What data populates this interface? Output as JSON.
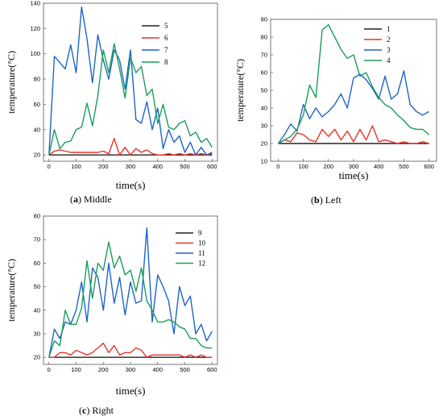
{
  "chart_data": [
    {
      "type": "line",
      "panel": "a",
      "caption_tag": "a",
      "caption_text": " Middle",
      "xlabel": "time(s)",
      "ylabel": "temperature(°C)",
      "xlim": [
        -20,
        620
      ],
      "ylim": [
        15,
        140
      ],
      "xticks": [
        0,
        100,
        200,
        300,
        400,
        500,
        600
      ],
      "yticks": [
        20,
        40,
        60,
        80,
        100,
        120,
        140
      ],
      "legend_position": "top-right",
      "colors": [
        "#222222",
        "#e8332a",
        "#1e64c8",
        "#1a9e5a"
      ],
      "series": [
        {
          "name": "5",
          "x": [
            0,
            600
          ],
          "values": [
            20,
            20
          ]
        },
        {
          "name": "6",
          "x": [
            0,
            20,
            40,
            60,
            80,
            100,
            120,
            140,
            160,
            180,
            200,
            220,
            240,
            260,
            280,
            300,
            320,
            340,
            360,
            380,
            400,
            420,
            440,
            460,
            480,
            500,
            520,
            540,
            560,
            580,
            600
          ],
          "values": [
            20,
            23,
            24,
            23,
            22,
            22,
            22,
            22,
            22,
            22,
            23,
            21,
            33,
            20,
            26,
            20,
            25,
            22,
            24,
            21,
            20,
            20,
            21,
            20,
            21,
            20,
            21,
            20,
            21,
            20,
            21
          ]
        },
        {
          "name": "7",
          "x": [
            0,
            20,
            40,
            60,
            80,
            100,
            120,
            140,
            160,
            180,
            200,
            220,
            240,
            260,
            280,
            300,
            320,
            340,
            360,
            380,
            400,
            420,
            440,
            460,
            480,
            500,
            520,
            540,
            560,
            580,
            600
          ],
          "values": [
            20,
            98,
            93,
            88,
            107,
            85,
            137,
            112,
            77,
            115,
            95,
            80,
            103,
            95,
            72,
            103,
            48,
            45,
            62,
            40,
            57,
            25,
            40,
            30,
            35,
            22,
            30,
            20,
            26,
            20,
            22
          ]
        },
        {
          "name": "8",
          "x": [
            0,
            20,
            40,
            60,
            80,
            100,
            120,
            140,
            160,
            180,
            200,
            220,
            240,
            260,
            280,
            300,
            320,
            340,
            360,
            380,
            400,
            420,
            440,
            460,
            480,
            500,
            520,
            540,
            560,
            580,
            600
          ],
          "values": [
            20,
            40,
            25,
            30,
            31,
            40,
            42,
            61,
            43,
            67,
            103,
            85,
            108,
            88,
            65,
            97,
            85,
            90,
            67,
            72,
            45,
            60,
            42,
            40,
            45,
            47,
            35,
            38,
            30,
            33,
            26
          ]
        }
      ]
    },
    {
      "type": "line",
      "panel": "b",
      "caption_tag": "b",
      "caption_text": " Left",
      "xlabel": "time(s)",
      "ylabel": "temperature(°C)",
      "xlim": [
        -30,
        630
      ],
      "ylim": [
        10,
        90
      ],
      "xticks": [
        0,
        100,
        200,
        300,
        400,
        500,
        600
      ],
      "yticks": [
        10,
        20,
        30,
        40,
        50,
        60,
        70,
        80,
        90
      ],
      "legend_position": "top-right",
      "colors": [
        "#222222",
        "#e8332a",
        "#1e64c8",
        "#1a9e5a"
      ],
      "series": [
        {
          "name": "1",
          "x": [
            0,
            600
          ],
          "values": [
            20,
            20
          ]
        },
        {
          "name": "2",
          "x": [
            0,
            25,
            50,
            75,
            100,
            125,
            150,
            175,
            200,
            225,
            250,
            275,
            300,
            325,
            350,
            375,
            400,
            425,
            450,
            475,
            500,
            525,
            550,
            575,
            600
          ],
          "values": [
            20,
            22,
            21,
            26,
            25,
            22,
            21,
            28,
            24,
            28,
            22,
            27,
            21,
            28,
            22,
            30,
            21,
            22,
            21,
            20,
            21,
            20,
            20,
            21,
            20
          ]
        },
        {
          "name": "3",
          "x": [
            0,
            25,
            50,
            75,
            100,
            125,
            150,
            175,
            200,
            225,
            250,
            275,
            300,
            325,
            350,
            375,
            400,
            425,
            450,
            475,
            500,
            525,
            550,
            575,
            600
          ],
          "values": [
            20,
            25,
            31,
            27,
            42,
            34,
            40,
            35,
            38,
            42,
            48,
            40,
            57,
            59,
            56,
            51,
            45,
            58,
            45,
            48,
            61,
            42,
            38,
            36,
            38
          ]
        },
        {
          "name": "4",
          "x": [
            0,
            25,
            50,
            75,
            100,
            125,
            150,
            175,
            200,
            225,
            250,
            275,
            300,
            325,
            350,
            375,
            400,
            425,
            450,
            475,
            500,
            525,
            550,
            575,
            600
          ],
          "values": [
            20,
            22,
            24,
            28,
            36,
            53,
            46,
            84,
            87,
            80,
            73,
            68,
            70,
            58,
            60,
            52,
            46,
            42,
            40,
            36,
            33,
            29,
            28,
            28,
            25
          ]
        }
      ]
    },
    {
      "type": "line",
      "panel": "c",
      "caption_tag": "c",
      "caption_text": " Right",
      "xlabel": "time(s)",
      "ylabel": "temperature(°C)",
      "xlim": [
        -20,
        620
      ],
      "ylim": [
        17,
        80
      ],
      "xticks": [
        0,
        100,
        200,
        300,
        400,
        500,
        600
      ],
      "yticks": [
        20,
        30,
        40,
        50,
        60,
        70,
        80
      ],
      "legend_position": "top-right",
      "colors": [
        "#222222",
        "#e8332a",
        "#1e64c8",
        "#1a9e5a"
      ],
      "series": [
        {
          "name": "9",
          "x": [
            0,
            600
          ],
          "values": [
            20,
            20
          ]
        },
        {
          "name": "10",
          "x": [
            0,
            20,
            40,
            60,
            80,
            100,
            120,
            140,
            160,
            180,
            200,
            220,
            240,
            260,
            280,
            300,
            320,
            340,
            360,
            380,
            400,
            420,
            440,
            460,
            480,
            500,
            520,
            540,
            560,
            580,
            600
          ],
          "values": [
            20,
            20,
            22,
            22,
            21,
            23,
            22,
            21,
            22,
            24,
            26,
            22,
            25,
            21,
            22,
            22,
            24,
            23,
            20,
            21,
            21,
            21,
            21,
            21,
            21,
            20,
            21,
            20,
            21,
            20,
            20
          ]
        },
        {
          "name": "11",
          "x": [
            0,
            20,
            40,
            60,
            80,
            100,
            120,
            140,
            160,
            180,
            200,
            220,
            240,
            260,
            280,
            300,
            320,
            340,
            360,
            380,
            400,
            420,
            440,
            460,
            480,
            500,
            520,
            540,
            560,
            580,
            600
          ],
          "values": [
            20,
            32,
            28,
            35,
            34,
            40,
            52,
            35,
            58,
            54,
            40,
            60,
            43,
            54,
            38,
            52,
            43,
            44,
            75,
            35,
            55,
            50,
            44,
            30,
            50,
            42,
            46,
            30,
            34,
            27,
            31
          ]
        },
        {
          "name": "12",
          "x": [
            0,
            20,
            40,
            60,
            80,
            100,
            120,
            140,
            160,
            180,
            200,
            220,
            240,
            260,
            280,
            300,
            320,
            340,
            360,
            380,
            400,
            420,
            440,
            460,
            480,
            500,
            520,
            540,
            560,
            580,
            600
          ],
          "values": [
            20,
            27,
            25,
            40,
            34,
            34,
            41,
            61,
            45,
            60,
            57,
            69,
            58,
            63,
            55,
            57,
            48,
            58,
            44,
            40,
            35,
            35,
            36,
            35,
            33,
            32,
            28,
            28,
            25,
            24,
            24
          ]
        }
      ]
    }
  ]
}
